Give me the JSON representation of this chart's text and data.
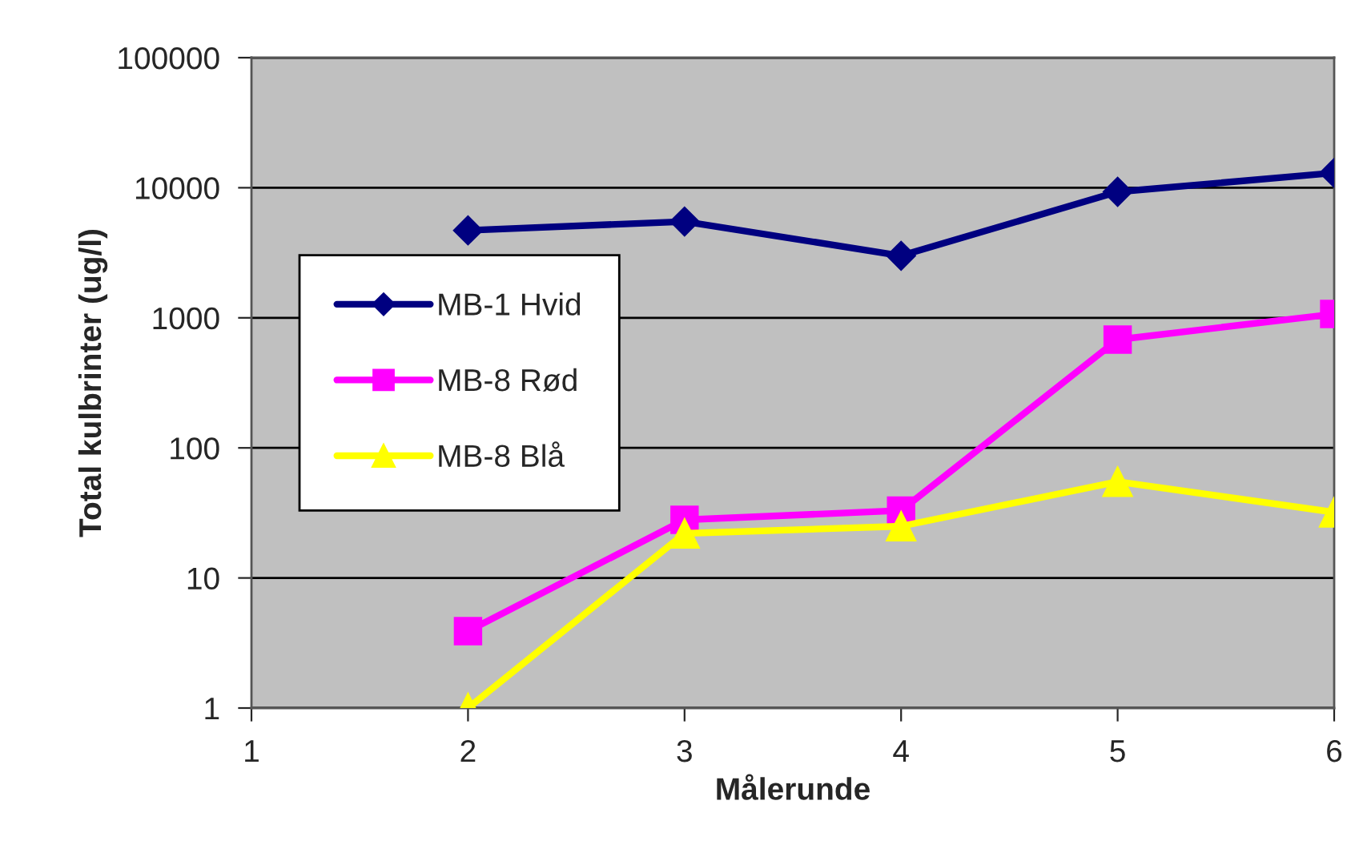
{
  "chart_data": {
    "type": "line",
    "xlabel": "Målerunde",
    "ylabel": "Total kulbrinter (ug/l)",
    "x": [
      2,
      3,
      4,
      5,
      6
    ],
    "series": [
      {
        "name": "MB-1 Hvid",
        "color": "#000080",
        "marker": "diamond",
        "values": [
          4700,
          5500,
          3000,
          9300,
          13000
        ]
      },
      {
        "name": "MB-8 Rød",
        "color": "#ff00ff",
        "marker": "square",
        "values": [
          3.9,
          28,
          33,
          680,
          1070
        ]
      },
      {
        "name": "MB-8 Blå",
        "color": "#ffff00",
        "marker": "triangle",
        "values": [
          1,
          22,
          25,
          55,
          32
        ]
      }
    ],
    "log": "y",
    "xlim": [
      1,
      6
    ],
    "xticks": [
      1,
      2,
      3,
      4,
      5,
      6
    ],
    "ylim": [
      1,
      100000
    ],
    "yticks": [
      1,
      10,
      100,
      1000,
      10000,
      100000
    ],
    "grid": "y",
    "legend": "left"
  }
}
